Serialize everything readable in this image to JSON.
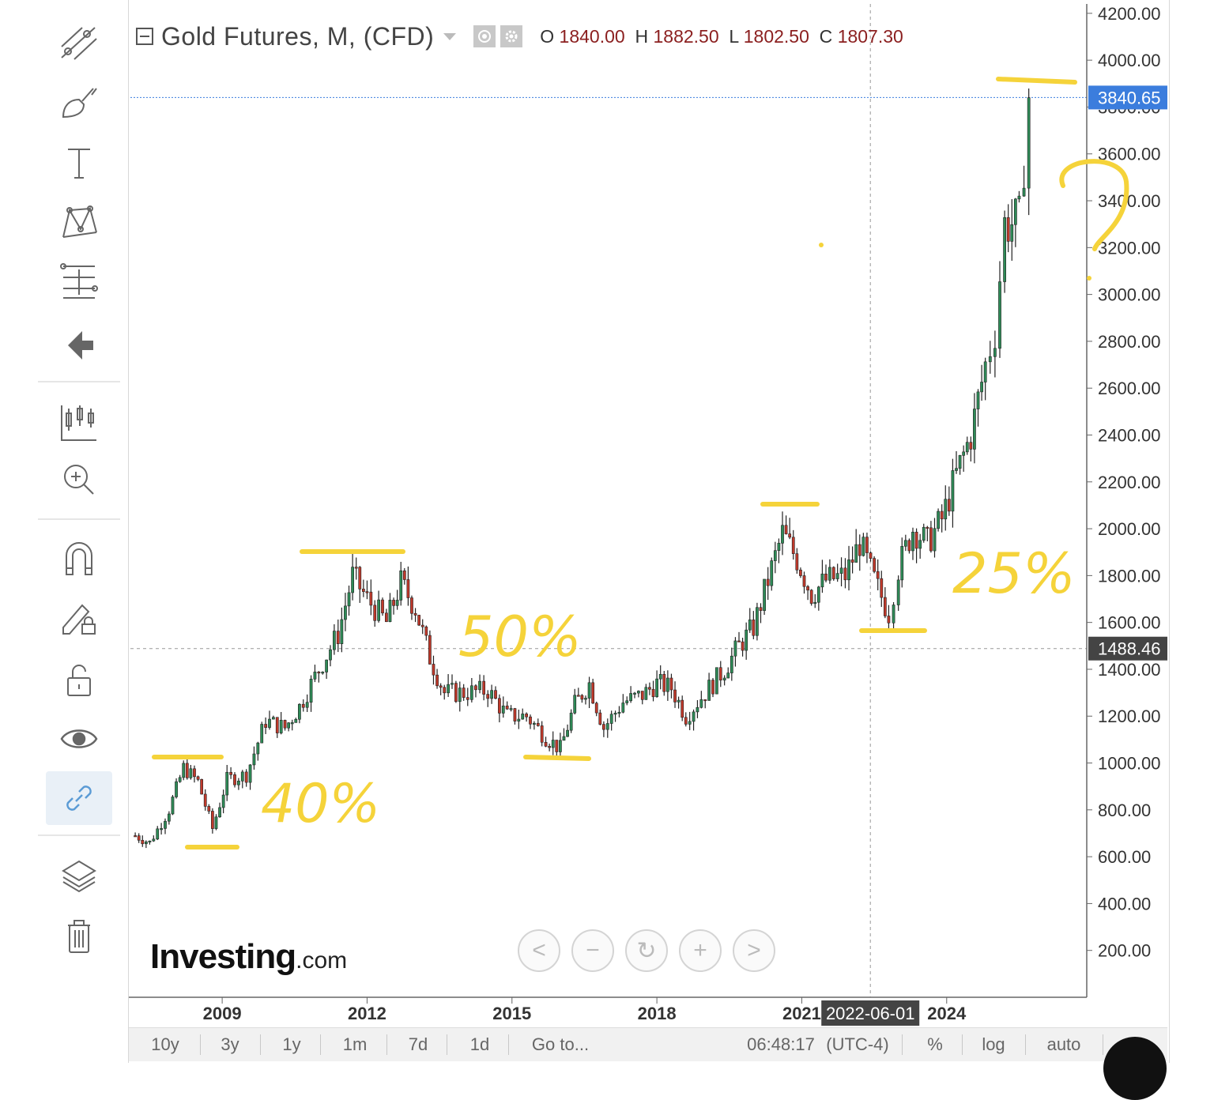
{
  "legend": {
    "title": "Gold Futures, M, (CFD)",
    "o_label": "O",
    "o_value": "1840.00",
    "h_label": "H",
    "h_value": "1882.50",
    "l_label": "L",
    "l_value": "1802.50",
    "c_label": "C",
    "c_value": "1807.30"
  },
  "toolbar": {
    "icons": [
      "trend-line-icon",
      "brush-icon",
      "text-icon",
      "pattern-icon",
      "fib-icon",
      "back-arrow-icon",
      "indicators-icon",
      "zoom-in-icon",
      "magnet-icon",
      "lock-drawing-icon",
      "unlock-icon",
      "eye-icon",
      "link-icon",
      "layers-icon",
      "trash-icon"
    ]
  },
  "price_labels": {
    "last": "3840.65",
    "crosshair": "1488.46",
    "crosshair_date": "2022-06-01"
  },
  "bottom_bar": {
    "ranges": [
      "10y",
      "3y",
      "1y",
      "1m",
      "7d",
      "1d"
    ],
    "goto": "Go to...",
    "clock": "06:48:17",
    "tz": "(UTC-4)",
    "pct": "%",
    "log": "log",
    "auto": "auto"
  },
  "brand": {
    "name": "Investing",
    "suffix": ".com"
  },
  "nav": [
    "<",
    "−",
    "↻",
    "+",
    ">"
  ],
  "annotations": [
    {
      "text": "40%"
    },
    {
      "text": "50%"
    },
    {
      "text": "25%"
    },
    {
      "text": "?"
    }
  ],
  "colors": {
    "up": "#2e8b57",
    "down": "#c0392b",
    "annotation": "#f5d33a",
    "last_label": "#3b7ddd",
    "cross_label": "#444444"
  },
  "chart_data": {
    "type": "candlestick",
    "title": "Gold Futures, M, (CFD)",
    "timeframe": "monthly",
    "x_ticks": [
      "2009",
      "2012",
      "2015",
      "2018",
      "2021",
      "2024"
    ],
    "y_ticks": [
      "200.00",
      "400.00",
      "600.00",
      "800.00",
      "1000.00",
      "1200.00",
      "1400.00",
      "1600.00",
      "1800.00",
      "2000.00",
      "2200.00",
      "2400.00",
      "2600.00",
      "2800.00",
      "3000.00",
      "3200.00",
      "3400.00",
      "3600.00",
      "3800.00",
      "4000.00",
      "4200.00"
    ],
    "ylim": [
      0,
      4240
    ],
    "xlim": [
      2007.1,
      2026.9
    ],
    "last_price": 3840.65,
    "crosshair": {
      "date": "2022-06-01",
      "price": 1488.46
    },
    "series": [
      {
        "t": 2007.2,
        "c": 690
      },
      {
        "t": 2007.5,
        "c": 660
      },
      {
        "t": 2007.9,
        "c": 800
      },
      {
        "t": 2008.2,
        "c": 980
      },
      {
        "t": 2008.5,
        "c": 920
      },
      {
        "t": 2008.8,
        "c": 720
      },
      {
        "t": 2009.1,
        "c": 930
      },
      {
        "t": 2009.5,
        "c": 950
      },
      {
        "t": 2009.9,
        "c": 1180
      },
      {
        "t": 2010.3,
        "c": 1150
      },
      {
        "t": 2010.6,
        "c": 1240
      },
      {
        "t": 2011.0,
        "c": 1400
      },
      {
        "t": 2011.4,
        "c": 1550
      },
      {
        "t": 2011.7,
        "c": 1800
      },
      {
        "t": 2012.0,
        "c": 1700
      },
      {
        "t": 2012.4,
        "c": 1600
      },
      {
        "t": 2012.7,
        "c": 1770
      },
      {
        "t": 2013.0,
        "c": 1660
      },
      {
        "t": 2013.3,
        "c": 1450
      },
      {
        "t": 2013.6,
        "c": 1300
      },
      {
        "t": 2014.0,
        "c": 1300
      },
      {
        "t": 2014.5,
        "c": 1310
      },
      {
        "t": 2014.9,
        "c": 1200
      },
      {
        "t": 2015.3,
        "c": 1200
      },
      {
        "t": 2015.7,
        "c": 1110
      },
      {
        "t": 2016.0,
        "c": 1060
      },
      {
        "t": 2016.3,
        "c": 1250
      },
      {
        "t": 2016.6,
        "c": 1340
      },
      {
        "t": 2016.9,
        "c": 1150
      },
      {
        "t": 2017.3,
        "c": 1260
      },
      {
        "t": 2017.7,
        "c": 1290
      },
      {
        "t": 2018.0,
        "c": 1340
      },
      {
        "t": 2018.3,
        "c": 1320
      },
      {
        "t": 2018.6,
        "c": 1200
      },
      {
        "t": 2019.0,
        "c": 1300
      },
      {
        "t": 2019.4,
        "c": 1400
      },
      {
        "t": 2019.7,
        "c": 1500
      },
      {
        "t": 2020.0,
        "c": 1580
      },
      {
        "t": 2020.3,
        "c": 1780
      },
      {
        "t": 2020.6,
        "c": 1980
      },
      {
        "t": 2020.9,
        "c": 1870
      },
      {
        "t": 2021.2,
        "c": 1720
      },
      {
        "t": 2021.5,
        "c": 1780
      },
      {
        "t": 2021.9,
        "c": 1800
      },
      {
        "t": 2022.2,
        "c": 1940
      },
      {
        "t": 2022.5,
        "c": 1780
      },
      {
        "t": 2022.8,
        "c": 1640
      },
      {
        "t": 2023.0,
        "c": 1830
      },
      {
        "t": 2023.3,
        "c": 2000
      },
      {
        "t": 2023.6,
        "c": 1940
      },
      {
        "t": 2023.9,
        "c": 2040
      },
      {
        "t": 2024.2,
        "c": 2230
      },
      {
        "t": 2024.5,
        "c": 2400
      },
      {
        "t": 2024.8,
        "c": 2700
      },
      {
        "t": 2025.0,
        "c": 2850
      },
      {
        "t": 2025.2,
        "c": 3300
      },
      {
        "t": 2025.5,
        "c": 3310
      },
      {
        "t": 2025.7,
        "c": 3840
      }
    ]
  }
}
